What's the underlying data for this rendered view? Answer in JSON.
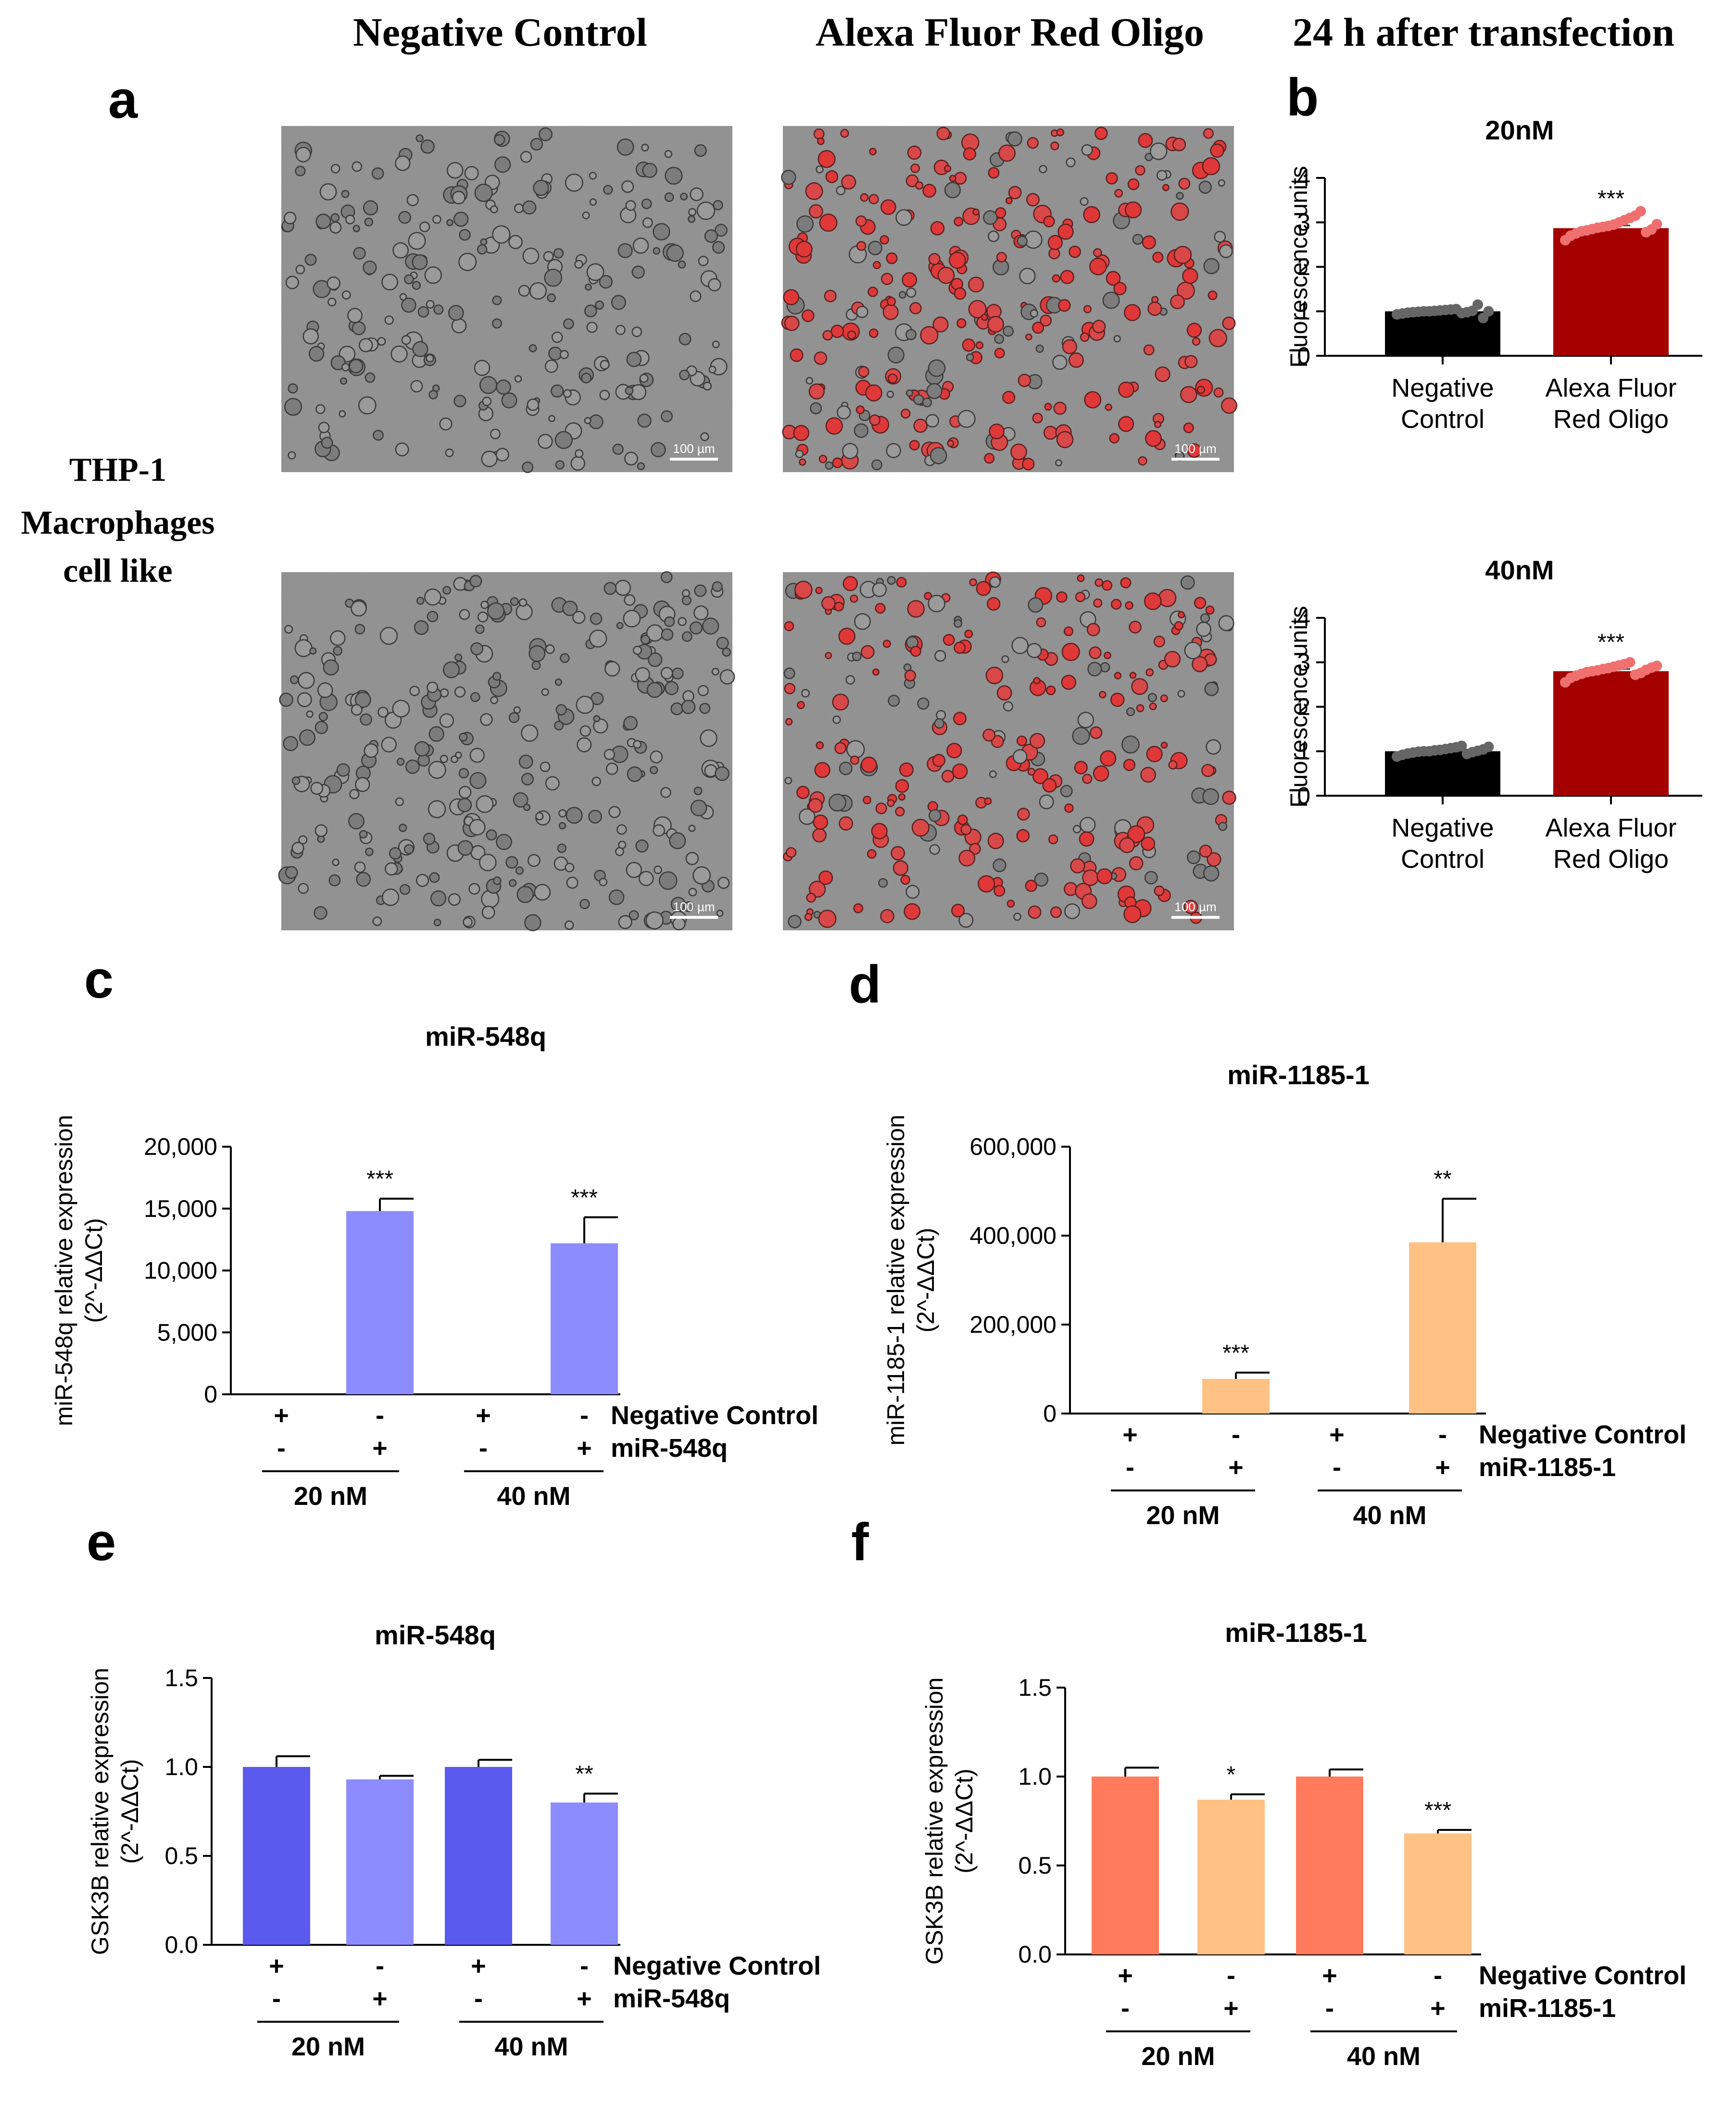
{
  "headers": {
    "col1": "Negative Control",
    "col2": "Alexa Fluor Red Oligo",
    "col3": "24 h after transfection"
  },
  "panels": {
    "a": "a",
    "b": "b",
    "c": "c",
    "d": "d",
    "e": "e",
    "f": "f"
  },
  "side_label": [
    "THP-1",
    "Macrophages",
    "cell like"
  ],
  "micrographs": {
    "scale_bar": "100 µm",
    "images": [
      {
        "name": "micrograph-nc-20",
        "type": "brightfield"
      },
      {
        "name": "micrograph-red-20",
        "type": "fluorescence"
      },
      {
        "name": "micrograph-nc-40",
        "type": "brightfield"
      },
      {
        "name": "micrograph-red-40",
        "type": "fluorescence"
      }
    ]
  },
  "colors": {
    "black_bar": "#000000",
    "dark_red": "#a50000",
    "lavender": "#8c8cff",
    "blue": "#5a5aee",
    "peach": "#ffc184",
    "salmon": "#ff7b5c"
  },
  "chart_data": [
    {
      "id": "b1",
      "type": "bar",
      "title": "20nM",
      "ylabel": "Fluorescence units",
      "ylim": [
        0,
        4
      ],
      "yticks": [
        0,
        1,
        2,
        3,
        4
      ],
      "categories": [
        [
          "Negative",
          "Control"
        ],
        [
          "Alexa Fluor",
          "Red Oligo"
        ]
      ],
      "values": [
        1.0,
        2.87
      ],
      "errors": [
        0.03,
        0.06
      ],
      "colors": [
        "#000000",
        "#a50000"
      ],
      "significance": [
        "",
        "***"
      ],
      "points": [
        [
          0.93,
          0.95,
          0.97,
          0.98,
          0.99,
          1.0,
          1.0,
          1.01,
          1.02,
          1.03,
          1.04,
          1.05,
          0.96,
          0.98,
          1.01,
          1.15,
          0.85,
          1.0
        ],
        [
          2.6,
          2.7,
          2.75,
          2.8,
          2.82,
          2.85,
          2.88,
          2.9,
          2.92,
          2.95,
          3.0,
          3.05,
          3.1,
          3.15,
          3.25,
          2.78,
          2.84,
          2.96
        ]
      ],
      "point_colors": [
        "#666666",
        "#f07070"
      ]
    },
    {
      "id": "b2",
      "type": "bar",
      "title": "40nM",
      "ylabel": "Fluorescence units",
      "ylim": [
        0,
        4
      ],
      "yticks": [
        0,
        1,
        2,
        3,
        4
      ],
      "categories": [
        [
          "Negative",
          "Control"
        ],
        [
          "Alexa Fluor",
          "Red Oligo"
        ]
      ],
      "values": [
        1.0,
        2.8
      ],
      "errors": [
        0.03,
        0.05
      ],
      "colors": [
        "#000000",
        "#a50000"
      ],
      "significance": [
        "",
        "***"
      ],
      "points": [
        [
          0.88,
          0.92,
          0.95,
          0.97,
          0.99,
          1.0,
          1.0,
          1.02,
          1.03,
          1.05,
          1.07,
          1.09,
          1.12,
          0.94,
          0.98,
          1.01,
          1.04,
          1.1
        ],
        [
          2.55,
          2.65,
          2.7,
          2.74,
          2.78,
          2.8,
          2.82,
          2.85,
          2.87,
          2.9,
          2.93,
          2.96,
          3.0,
          2.72,
          2.76,
          2.83,
          2.88,
          2.92
        ]
      ],
      "point_colors": [
        "#666666",
        "#f07070"
      ]
    },
    {
      "id": "c",
      "type": "bar",
      "title": "miR-548q",
      "ylabel": "miR-548q relative expression",
      "ylabel2": "(2^-ΔΔCt)",
      "ylim": [
        0,
        20000
      ],
      "yticks": [
        0,
        5000,
        10000,
        15000,
        20000
      ],
      "yticklabels": [
        "0",
        "5,000",
        "10,000",
        "15,000",
        "20,000"
      ],
      "values": [
        0,
        14800,
        0,
        12200
      ],
      "errors": [
        0,
        1000,
        0,
        2100
      ],
      "colors": [
        "#8c8cff",
        "#8c8cff",
        "#8c8cff",
        "#8c8cff"
      ],
      "significance": [
        "",
        "***",
        "",
        "***"
      ],
      "row1_signs": [
        "+",
        "-",
        "+",
        "-"
      ],
      "row2_signs": [
        "-",
        "+",
        "-",
        "+"
      ],
      "row1_label": "Negative Control",
      "row2_label": "miR-548q",
      "groups": [
        "20 nM",
        "40 nM"
      ]
    },
    {
      "id": "d",
      "type": "bar",
      "title": "miR-1185-1",
      "ylabel": "miR-1185-1 relative expression",
      "ylabel2": "(2^-ΔΔCt)",
      "ylim": [
        0,
        600000
      ],
      "yticks": [
        0,
        200000,
        400000,
        600000
      ],
      "yticklabels": [
        "0",
        "200,000",
        "400,000",
        "600,000"
      ],
      "values": [
        0,
        78000,
        0,
        385000
      ],
      "errors": [
        0,
        14000,
        0,
        98000
      ],
      "colors": [
        "#ffc184",
        "#ffc184",
        "#ffc184",
        "#ffc184"
      ],
      "significance": [
        "",
        "***",
        "",
        "**"
      ],
      "row1_signs": [
        "+",
        "-",
        "+",
        "-"
      ],
      "row2_signs": [
        "-",
        "+",
        "-",
        "+"
      ],
      "row1_label": "Negative  Control",
      "row2_label": "miR-1185-1",
      "groups": [
        "20 nM",
        "40 nM"
      ]
    },
    {
      "id": "e",
      "type": "bar",
      "title": "miR-548q",
      "ylabel": "GSK3B relative expression",
      "ylabel2": "(2^-ΔΔCt)",
      "ylim": [
        0,
        1.5
      ],
      "yticks": [
        0,
        0.5,
        1.0,
        1.5
      ],
      "yticklabels": [
        "0.0",
        "0.5",
        "1.0",
        "1.5"
      ],
      "values": [
        1.0,
        0.93,
        1.0,
        0.8
      ],
      "errors": [
        0.06,
        0.02,
        0.04,
        0.05
      ],
      "colors": [
        "#5a5aee",
        "#8c8cff",
        "#5a5aee",
        "#8c8cff"
      ],
      "significance": [
        "",
        "",
        "",
        "**"
      ],
      "row1_signs": [
        "+",
        "-",
        "+",
        "-"
      ],
      "row2_signs": [
        "-",
        "+",
        "-",
        "+"
      ],
      "row1_label": "Negative  Control",
      "row2_label": "miR-548q",
      "groups": [
        "20 nM",
        "40 nM"
      ]
    },
    {
      "id": "f",
      "type": "bar",
      "title": "miR-1185-1",
      "ylabel": "GSK3B relative expression",
      "ylabel2": "(2^-ΔΔCt)",
      "ylim": [
        0,
        1.5
      ],
      "yticks": [
        0,
        0.5,
        1.0,
        1.5
      ],
      "yticklabels": [
        "0.0",
        "0.5",
        "1.0",
        "1.5"
      ],
      "values": [
        1.0,
        0.87,
        1.0,
        0.68
      ],
      "errors": [
        0.05,
        0.03,
        0.04,
        0.02
      ],
      "colors": [
        "#ff7b5c",
        "#ffc184",
        "#ff7b5c",
        "#ffc184"
      ],
      "significance": [
        "",
        "*",
        "",
        "***"
      ],
      "row1_signs": [
        "+",
        "-",
        "+",
        "-"
      ],
      "row2_signs": [
        "-",
        "+",
        "-",
        "+"
      ],
      "row1_label": "Negative  Control",
      "row2_label": "miR-1185-1",
      "groups": [
        "20 nM",
        "40 nM"
      ]
    }
  ]
}
